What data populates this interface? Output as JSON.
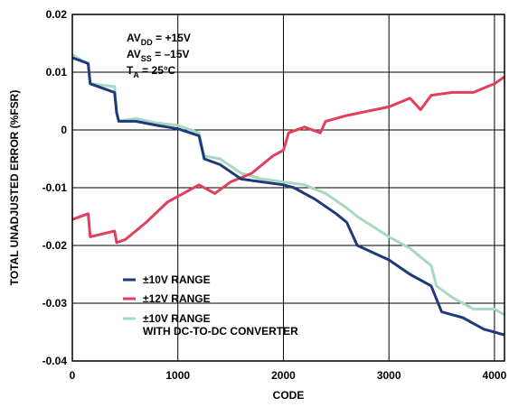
{
  "chart_data": {
    "type": "line",
    "xlabel": "CODE",
    "ylabel": "TOTAL UNADJUSTED ERROR (%FSR)",
    "xlim": [
      0,
      4095
    ],
    "ylim": [
      -0.04,
      0.02
    ],
    "grid": true,
    "x_ticks": [
      {
        "value": 0,
        "label": "0"
      },
      {
        "value": 1000,
        "label": "1000"
      },
      {
        "value": 2000,
        "label": "2000"
      },
      {
        "value": 3000,
        "label": "3000"
      },
      {
        "value": 4000,
        "label": "4000"
      }
    ],
    "y_ticks": [
      {
        "value": 0.02,
        "label": "0.02"
      },
      {
        "value": 0.01,
        "label": "0.01"
      },
      {
        "value": 0,
        "label": "0"
      },
      {
        "value": -0.01,
        "label": "-0.01"
      },
      {
        "value": -0.02,
        "label": "-0.02"
      },
      {
        "value": -0.03,
        "label": "-0.03"
      },
      {
        "value": -0.04,
        "label": "-0.04"
      }
    ],
    "annotations": {
      "avdd": {
        "main": "AV",
        "sub": "DD",
        "rest": " = +15V"
      },
      "avss": {
        "main": "AV",
        "sub": "SS",
        "rest": " =  –15V"
      },
      "ta": {
        "main": "T",
        "sub": "A",
        "rest": " = 25°C"
      }
    },
    "series": [
      {
        "name": "±10V RANGE",
        "color": "#1f3a7a",
        "points": [
          [
            0,
            0.0125
          ],
          [
            150,
            0.0115
          ],
          [
            170,
            0.008
          ],
          [
            400,
            0.0065
          ],
          [
            420,
            0.003
          ],
          [
            440,
            0.0015
          ],
          [
            600,
            0.0015
          ],
          [
            800,
            0.0008
          ],
          [
            1000,
            0.0002
          ],
          [
            1200,
            -0.001
          ],
          [
            1250,
            -0.005
          ],
          [
            1400,
            -0.006
          ],
          [
            1600,
            -0.0085
          ],
          [
            1800,
            -0.009
          ],
          [
            2000,
            -0.0095
          ],
          [
            2100,
            -0.01
          ],
          [
            2300,
            -0.012
          ],
          [
            2500,
            -0.0145
          ],
          [
            2600,
            -0.016
          ],
          [
            2700,
            -0.02
          ],
          [
            3000,
            -0.0225
          ],
          [
            3200,
            -0.025
          ],
          [
            3400,
            -0.027
          ],
          [
            3500,
            -0.0315
          ],
          [
            3700,
            -0.0325
          ],
          [
            3800,
            -0.0335
          ],
          [
            3900,
            -0.0345
          ],
          [
            4000,
            -0.035
          ],
          [
            4095,
            -0.0355
          ]
        ]
      },
      {
        "name": "±12V RANGE",
        "color": "#e0405a",
        "points": [
          [
            0,
            -0.0155
          ],
          [
            150,
            -0.0145
          ],
          [
            170,
            -0.0185
          ],
          [
            400,
            -0.0175
          ],
          [
            420,
            -0.0195
          ],
          [
            500,
            -0.019
          ],
          [
            700,
            -0.016
          ],
          [
            900,
            -0.0125
          ],
          [
            1200,
            -0.0095
          ],
          [
            1350,
            -0.011
          ],
          [
            1500,
            -0.009
          ],
          [
            1700,
            -0.0075
          ],
          [
            1900,
            -0.0045
          ],
          [
            2000,
            -0.0035
          ],
          [
            2050,
            -0.0005
          ],
          [
            2200,
            0.0005
          ],
          [
            2350,
            -0.0005
          ],
          [
            2400,
            0.0015
          ],
          [
            2600,
            0.0025
          ],
          [
            3000,
            0.004
          ],
          [
            3200,
            0.0055
          ],
          [
            3300,
            0.0035
          ],
          [
            3400,
            0.006
          ],
          [
            3600,
            0.0065
          ],
          [
            3800,
            0.0065
          ],
          [
            4000,
            0.008
          ],
          [
            4095,
            0.0092
          ]
        ]
      },
      {
        "name": "±10V RANGE",
        "subname": "WITH DC-TO-DC CONVERTER",
        "color": "#a8d8c0",
        "points": [
          [
            0,
            0.013
          ],
          [
            150,
            0.0115
          ],
          [
            170,
            0.008
          ],
          [
            400,
            0.0075
          ],
          [
            420,
            0.003
          ],
          [
            440,
            0.0015
          ],
          [
            600,
            0.002
          ],
          [
            800,
            0.0012
          ],
          [
            1000,
            0.0008
          ],
          [
            1200,
            -0.0005
          ],
          [
            1250,
            -0.0045
          ],
          [
            1400,
            -0.005
          ],
          [
            1600,
            -0.0075
          ],
          [
            1800,
            -0.0085
          ],
          [
            2000,
            -0.009
          ],
          [
            2200,
            -0.0095
          ],
          [
            2400,
            -0.011
          ],
          [
            2600,
            -0.0135
          ],
          [
            2700,
            -0.015
          ],
          [
            3000,
            -0.0185
          ],
          [
            3200,
            -0.0205
          ],
          [
            3400,
            -0.0235
          ],
          [
            3450,
            -0.027
          ],
          [
            3600,
            -0.029
          ],
          [
            3700,
            -0.03
          ],
          [
            3800,
            -0.031
          ],
          [
            4000,
            -0.031
          ],
          [
            4095,
            -0.032
          ]
        ]
      }
    ]
  }
}
